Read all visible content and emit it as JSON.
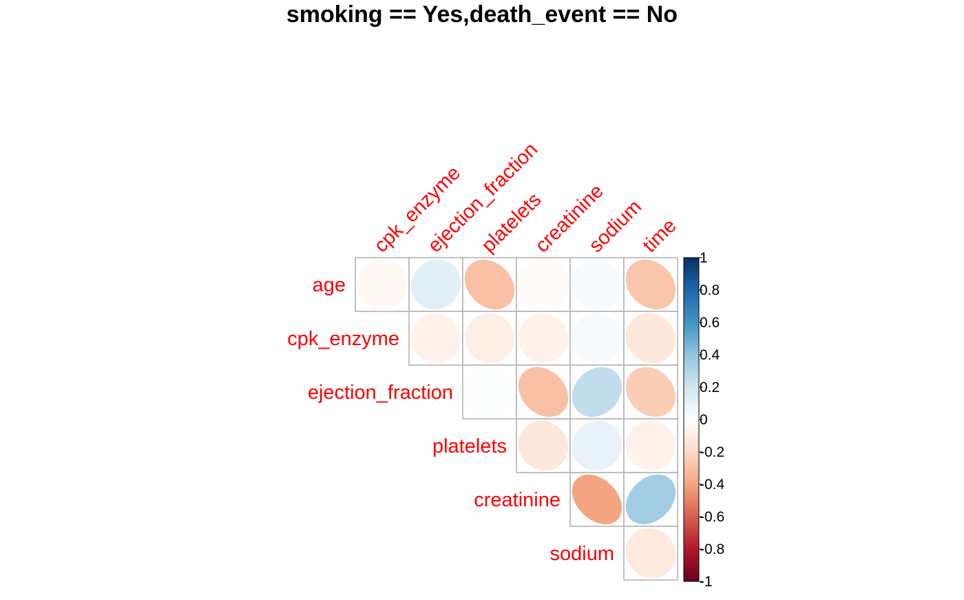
{
  "chart_data": {
    "type": "heatmap",
    "subtype": "correlation-ellipse-upper",
    "title": "smoking == Yes,death_event == No",
    "row_labels": [
      "age",
      "cpk_enzyme",
      "ejection_fraction",
      "platelets",
      "creatinine",
      "sodium"
    ],
    "col_labels": [
      "cpk_enzyme",
      "ejection_fraction",
      "platelets",
      "creatinine",
      "sodium",
      "time"
    ],
    "label_color": "#FF0000",
    "color_scale": {
      "min": -1,
      "max": 1,
      "ticks": [
        1,
        0.8,
        0.6,
        0.4,
        0.2,
        0,
        -0.2,
        -0.4,
        -0.6,
        -0.8,
        -1
      ],
      "tick_labels": [
        "1",
        "0.8",
        "0.6",
        "0.4",
        "0.2",
        "0",
        "-0.2",
        "-0.4",
        "-0.6",
        "-0.8",
        "-1"
      ],
      "colors": [
        "#67001F",
        "#B2182B",
        "#D6604D",
        "#F4A582",
        "#FDDBC7",
        "#FFFFFF",
        "#D1E5F0",
        "#92C5DE",
        "#4393C3",
        "#2166AC",
        "#053061"
      ]
    },
    "values": [
      [
        -0.04,
        0.12,
        -0.3,
        -0.02,
        0.03,
        -0.28
      ],
      [
        null,
        -0.07,
        -0.09,
        -0.07,
        0.03,
        -0.13
      ],
      [
        null,
        null,
        0.01,
        -0.3,
        0.25,
        -0.25
      ],
      [
        null,
        null,
        null,
        -0.13,
        0.1,
        -0.07
      ],
      [
        null,
        null,
        null,
        null,
        -0.4,
        0.35
      ],
      [
        null,
        null,
        null,
        null,
        null,
        -0.12
      ]
    ]
  }
}
